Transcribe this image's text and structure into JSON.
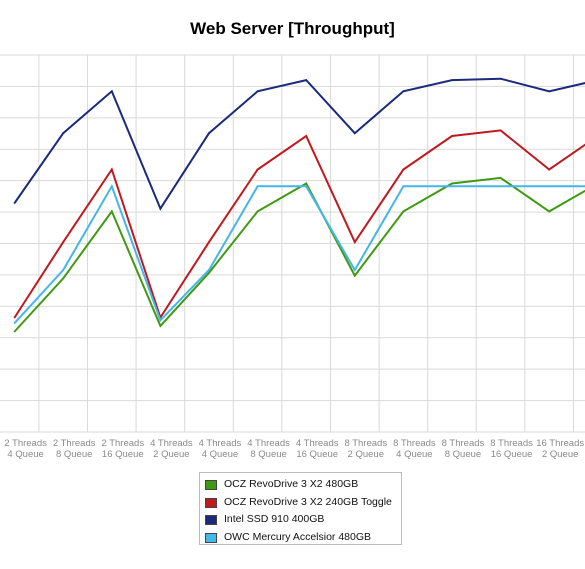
{
  "chart_data": {
    "type": "line",
    "title": "Web Server [Throughput]",
    "categories": [
      [
        "2 Threads",
        "4 Queue"
      ],
      [
        "2 Threads",
        "8 Queue"
      ],
      [
        "2 Threads",
        "16 Queue"
      ],
      [
        "4 Threads",
        "2 Queue"
      ],
      [
        "4 Threads",
        "4 Queue"
      ],
      [
        "4 Threads",
        "8 Queue"
      ],
      [
        "4 Threads",
        "16 Queue"
      ],
      [
        "8 Threads",
        "2 Queue"
      ],
      [
        "8 Threads",
        "4 Queue"
      ],
      [
        "8 Threads",
        "8 Queue"
      ],
      [
        "8 Threads",
        "16 Queue"
      ],
      [
        "16 Threads",
        "2 Queue"
      ],
      [
        "16 Threads",
        "4 Queue"
      ]
    ],
    "x_start": 0.3,
    "ylim": [
      0,
      13.5
    ],
    "grid": true,
    "legend_position": "bottom",
    "series": [
      {
        "name": "OCZ RevoDrive 3 X2 480GB",
        "color": "#3f9a12",
        "values": [
          3.6,
          5.5,
          7.9,
          3.8,
          5.7,
          7.9,
          8.9,
          5.6,
          7.9,
          8.9,
          9.1,
          7.9,
          8.9
        ]
      },
      {
        "name": "OCZ RevoDrive 3 X2 240GB Toggle",
        "color": "#c0191f",
        "values": [
          4.1,
          6.8,
          9.4,
          4.1,
          6.8,
          9.4,
          10.6,
          6.8,
          9.4,
          10.6,
          10.8,
          9.4,
          10.6
        ]
      },
      {
        "name": "Intel SSD 910 400GB",
        "color": "#1b2a7a",
        "values": [
          8.2,
          10.7,
          12.2,
          8.0,
          10.7,
          12.2,
          12.6,
          10.7,
          12.2,
          12.6,
          12.65,
          12.2,
          12.6
        ]
      },
      {
        "name": "OWC Mercury Accelsior 480GB",
        "color": "#44b6e8",
        "values": [
          3.9,
          5.8,
          8.8,
          4.0,
          5.8,
          8.8,
          8.8,
          5.8,
          8.8,
          8.8,
          8.8,
          8.8,
          8.8
        ]
      }
    ]
  }
}
